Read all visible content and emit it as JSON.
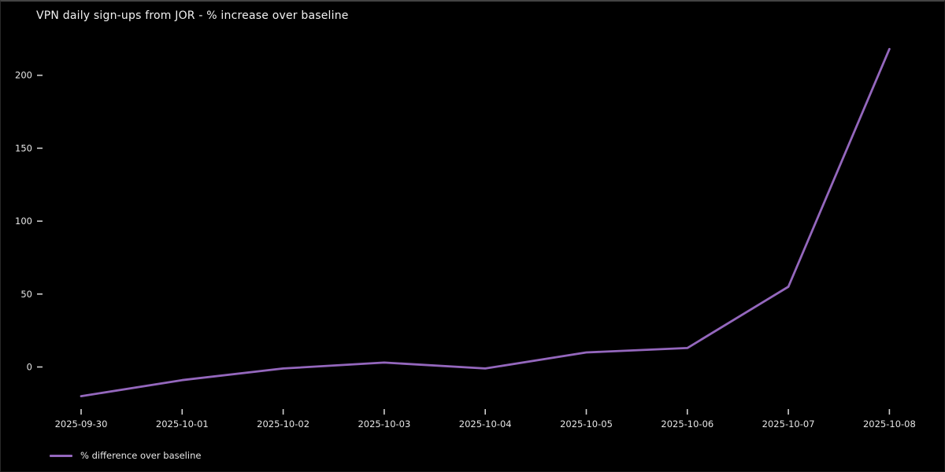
{
  "title": "VPN daily sign-ups from JOR - % increase over baseline",
  "colors": {
    "background": "#000000",
    "line": "#9467bd",
    "tick": "#cfcfcf",
    "text": "#e6e6e6",
    "title_text": "#f2f2f2"
  },
  "chart_data": {
    "type": "line",
    "title": "VPN daily sign-ups from JOR - % increase over baseline",
    "x": [
      "2025-09-30",
      "2025-10-01",
      "2025-10-02",
      "2025-10-03",
      "2025-10-04",
      "2025-10-05",
      "2025-10-06",
      "2025-10-07",
      "2025-10-08"
    ],
    "series": [
      {
        "name": "% difference over baseline",
        "values": [
          -20,
          -9,
          -1,
          3,
          -1,
          10,
          13,
          55,
          218
        ],
        "color": "#9467bd"
      }
    ],
    "xlabel": "",
    "ylabel": "",
    "yticks": [
      0,
      50,
      100,
      150,
      200
    ],
    "ylim": [
      -30,
      228
    ],
    "grid": false,
    "legend_position": "lower-left",
    "legend_entries": [
      "% difference over baseline"
    ]
  }
}
